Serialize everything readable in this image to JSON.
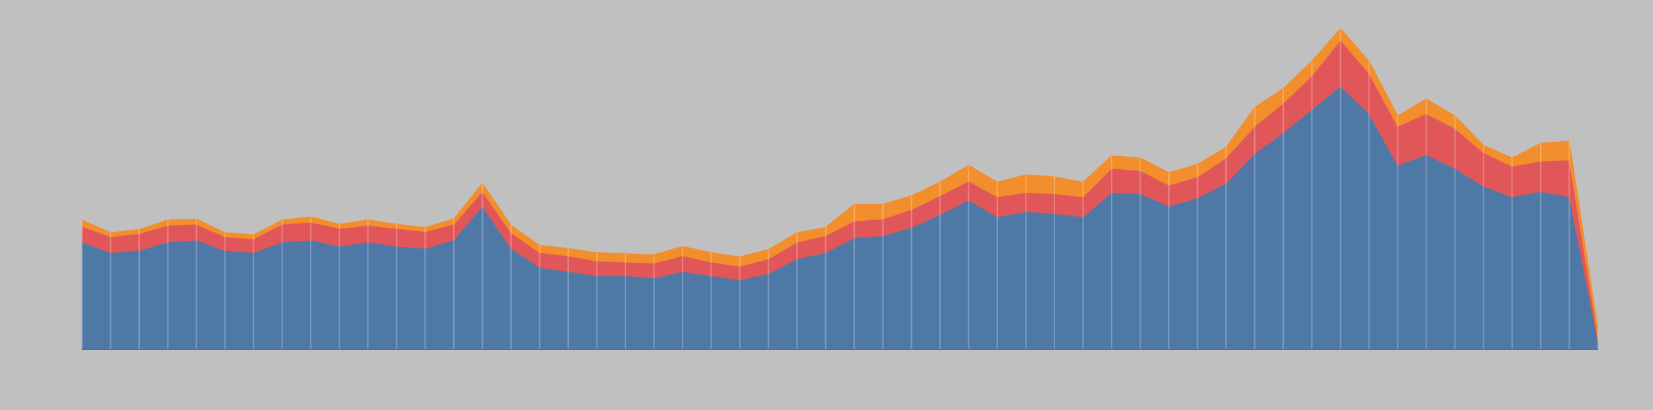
{
  "chart_data": {
    "type": "area",
    "stacked": true,
    "grid": true,
    "x": [
      0,
      1,
      2,
      3,
      4,
      5,
      6,
      7,
      8,
      9,
      10,
      11,
      12,
      13,
      14,
      15,
      16,
      17,
      18,
      19,
      20,
      21,
      22,
      23,
      24,
      25,
      26,
      27,
      28,
      29,
      30,
      31,
      32,
      33,
      34,
      35,
      36,
      37,
      38,
      39,
      40,
      41,
      42,
      43,
      44,
      45,
      46,
      47,
      48,
      49,
      50,
      51,
      52,
      53
    ],
    "xlim": [
      0,
      53
    ],
    "ylim": [
      0,
      332
    ],
    "series": [
      {
        "color": "#4e79a7",
        "values": [
          102,
          92,
          94,
          102,
          104,
          94,
          92,
          102,
          104,
          98,
          102,
          98,
          96,
          104,
          136,
          96,
          78,
          74,
          70,
          70,
          68,
          74,
          70,
          66,
          72,
          86,
          92,
          106,
          108,
          116,
          128,
          142,
          126,
          131,
          129,
          126,
          149,
          148,
          136,
          144,
          158,
          186,
          206,
          228,
          250,
          224,
          175,
          185,
          172,
          155,
          145,
          150,
          145,
          8
        ]
      },
      {
        "color": "#e15759",
        "values": [
          15,
          15,
          16,
          16,
          15,
          13,
          13,
          17,
          17,
          17,
          16,
          17,
          16,
          15,
          14,
          15,
          14,
          15,
          14,
          13,
          14,
          15,
          13,
          13,
          14,
          16,
          16,
          16,
          16,
          17,
          18,
          18,
          19,
          18,
          19,
          19,
          23,
          22,
          20,
          20,
          24,
          26,
          28,
          32,
          44,
          38,
          37,
          39,
          38,
          32,
          29,
          29,
          35,
          4
        ]
      },
      {
        "color": "#f28e2b",
        "values": [
          6,
          4,
          4,
          5,
          5,
          4,
          4,
          4,
          5,
          4,
          5,
          4,
          4,
          5,
          8,
          7,
          7,
          7,
          8,
          8,
          8,
          9,
          9,
          9,
          9,
          9,
          8,
          16,
          14,
          13,
          13,
          15,
          14,
          17,
          16,
          14,
          12,
          12,
          12,
          12,
          10,
          18,
          14,
          14,
          11,
          12,
          10,
          14,
          12,
          7,
          8,
          17,
          18,
          8
        ]
      }
    ]
  }
}
